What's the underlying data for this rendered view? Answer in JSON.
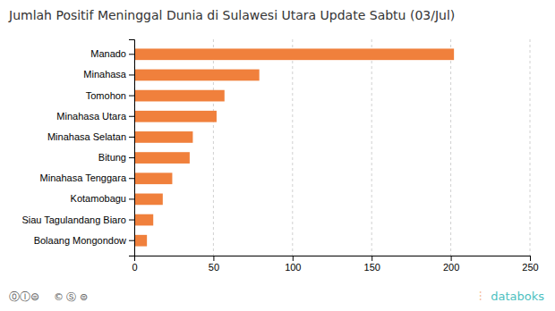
{
  "chart_data": {
    "type": "bar",
    "orientation": "horizontal",
    "title": "Jumlah Positif Meninggal Dunia di Sulawesi Utara Update Sabtu (03/Jul)",
    "categories": [
      "Bolaang Mongondow",
      "Siau Tagulandang Biaro",
      "Kotamobagu",
      "Minahasa Tenggara",
      "Bitung",
      "Minahasa Selatan",
      "Minahasa Utara",
      "Tomohon",
      "Minahasa",
      "Manado"
    ],
    "values": [
      8,
      12,
      18,
      24,
      35,
      37,
      52,
      57,
      79,
      202
    ],
    "color": "#f0803c",
    "xlim": [
      0,
      250
    ],
    "xticks": [
      0,
      50,
      100,
      150,
      200,
      250
    ],
    "grid": true,
    "annotations": [
      "⓪Ⓘ⊜",
      "© Ⓢ ⊜",
      "databoks",
      "⫶"
    ]
  }
}
